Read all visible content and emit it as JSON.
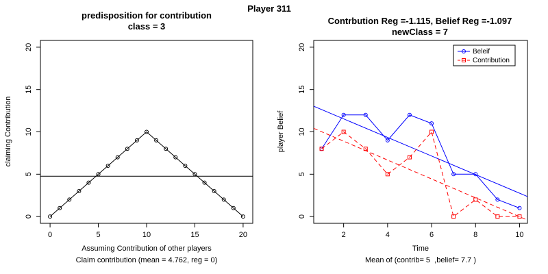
{
  "figure_title": "Player 311",
  "chart_data": [
    {
      "type": "line",
      "title": "predisposition for contribution",
      "subtitle": "class = 3",
      "xlabel": "Assuming Contribution of other players",
      "xlabel2": "Claim contribution (mean = 4.762, reg = 0)",
      "ylabel": "claiming Contribution",
      "xlim": [
        -1,
        21
      ],
      "ylim": [
        -0.8,
        20.8
      ],
      "xticks": [
        0,
        5,
        10,
        15,
        20
      ],
      "yticks": [
        0,
        5,
        10,
        15,
        20
      ],
      "grid": false,
      "series": [
        {
          "color": "#000000",
          "marker": "circle",
          "x": [
            0,
            1,
            2,
            3,
            4,
            5,
            6,
            7,
            8,
            9,
            10,
            11,
            12,
            13,
            14,
            15,
            16,
            17,
            18,
            19,
            20
          ],
          "values": [
            0,
            1,
            2,
            3,
            4,
            5,
            6,
            7,
            8,
            9,
            10,
            9,
            8,
            7,
            6,
            5,
            4,
            3,
            2,
            1,
            0
          ]
        }
      ],
      "hline": 4.762
    },
    {
      "type": "line",
      "title": "Contrbution Reg =-1.115, Belief Reg =-1.097",
      "subtitle": "newClass = 7",
      "xlabel": "Time",
      "xlabel2": "Mean of (contrib= 5  ,belief= 7.7 )",
      "ylabel": "player Belief",
      "xlim": [
        0.64,
        10.36
      ],
      "ylim": [
        -0.8,
        20.8
      ],
      "xticks": [
        2,
        4,
        6,
        8,
        10
      ],
      "yticks": [
        0,
        5,
        10,
        15,
        20
      ],
      "grid": false,
      "legend_position": "top-right",
      "series": [
        {
          "name": "Beleif",
          "color": "#0000ff",
          "marker": "circle",
          "dash": "solid",
          "x": [
            1,
            2,
            3,
            4,
            5,
            6,
            7,
            8,
            9,
            10
          ],
          "values": [
            8,
            12,
            12,
            9,
            12,
            11,
            5,
            5,
            2,
            1
          ],
          "reg": {
            "intercept": 13.73,
            "slope": -1.097
          }
        },
        {
          "name": "Contribution",
          "color": "#ff0000",
          "marker": "square",
          "dash": "dashed",
          "x": [
            1,
            2,
            3,
            4,
            5,
            6,
            7,
            8,
            9,
            10
          ],
          "values": [
            8,
            10,
            8,
            5,
            7,
            10,
            0,
            2,
            0,
            0
          ],
          "reg": {
            "intercept": 11.13,
            "slope": -1.115
          }
        }
      ]
    }
  ]
}
